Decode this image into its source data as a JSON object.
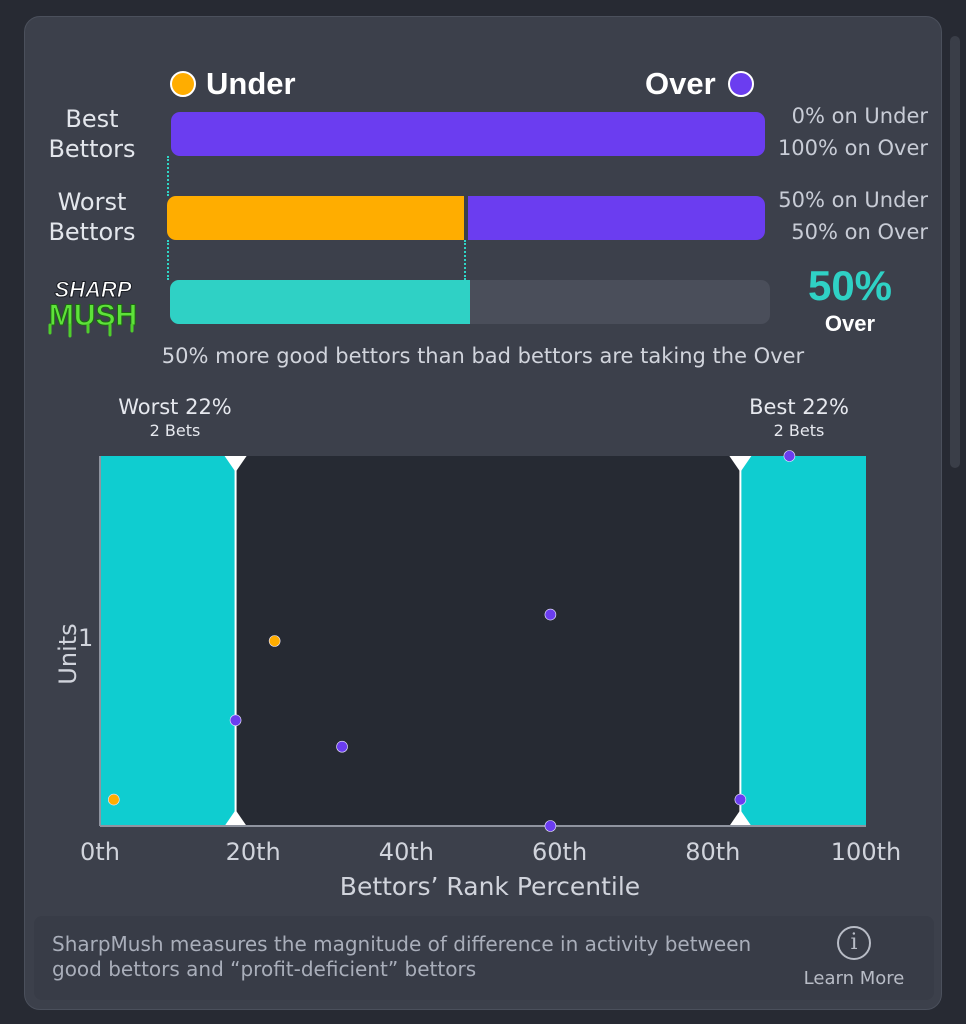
{
  "legend": {
    "under_label": "Under",
    "over_label": "Over",
    "under_color": "#ffad00",
    "over_color": "#6b3df0"
  },
  "rows": [
    {
      "label": "Best\nBettors",
      "under_pct": 0,
      "over_pct": 100,
      "under_text": "0% on Under",
      "over_text": "100% on Over"
    },
    {
      "label": "Worst\nBettors",
      "under_pct": 50,
      "over_pct": 50,
      "under_text": "50% on Under",
      "over_text": "50% on Over"
    }
  ],
  "sharpmush": {
    "logo_top": "SHARP",
    "logo_bottom": "MUSH",
    "value": 50,
    "value_text": "50%",
    "side_text": "Over",
    "accent_color": "#2fd1c5",
    "summary": "50% more good bettors than bad bettors are taking the Over"
  },
  "chart_data": {
    "type": "scatter",
    "xlabel": "Bettors’ Rank Percentile",
    "ylabel": "Units",
    "xlim": [
      0,
      100
    ],
    "ylim": [
      0,
      1.4
    ],
    "x_ticks": [
      "0th",
      "20th",
      "40th",
      "60th",
      "80th",
      "100th"
    ],
    "y_ticks": [
      {
        "value": 1,
        "label": "1"
      }
    ],
    "worst_range": {
      "from": 0,
      "to": 17.7,
      "title": "Worst 22%",
      "sub": "2 Bets"
    },
    "best_range": {
      "from": 83.6,
      "to": 100,
      "title": "Best 22%",
      "sub": "2 Bets"
    },
    "series": [
      {
        "name": "Under",
        "color": "#ffad00",
        "points": [
          [
            1.8,
            0.1
          ],
          [
            22.8,
            0.7
          ]
        ]
      },
      {
        "name": "Over",
        "color": "#6b3df0",
        "points": [
          [
            17.7,
            0.4
          ],
          [
            31.6,
            0.3
          ],
          [
            58.8,
            0.8
          ],
          [
            58.8,
            0.0
          ],
          [
            83.6,
            0.1
          ],
          [
            90.0,
            1.4
          ]
        ]
      }
    ]
  },
  "footer": {
    "text": "SharpMush measures the magnitude of difference in activity between good bettors and “profit-deficient” bettors",
    "learn_more": "Learn More",
    "info_icon": "info-icon"
  }
}
